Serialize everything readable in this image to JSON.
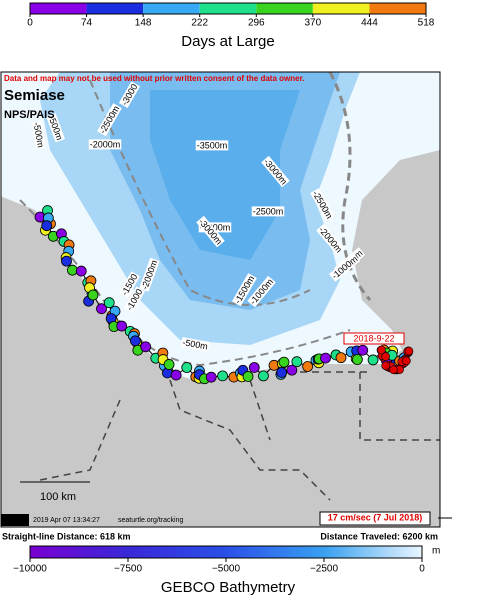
{
  "days_colorbar": {
    "title": "Days at Large",
    "ticks": [
      0,
      74,
      148,
      222,
      296,
      370,
      444,
      518
    ],
    "colors": [
      "#8a00e6",
      "#1a2ee0",
      "#38aaf5",
      "#1ee08a",
      "#38d420",
      "#f0f020",
      "#f07a10"
    ]
  },
  "map": {
    "warning": "Data and map may not be used without prior written consent of the data owner.",
    "turtle_name": "Semiase",
    "owner": "NPS/PAIS",
    "contour_labels": [
      "-3000",
      "-2500m",
      "-2000m",
      "-3500m",
      "-3000m",
      "-2500m",
      "-2000m",
      "-3000m",
      "-2500m",
      "-2000m",
      "-1500m",
      "-1000m",
      "-1500",
      "-1000",
      "-2000m",
      "-1500m",
      "-1000m",
      "-500m",
      "-500m",
      "-500m"
    ],
    "date_label": "2018-9-22",
    "scale_label": "100 km",
    "timestamp": "2019 Apr 07 13:34:27",
    "website": "seaturtle.org/tracking",
    "current_label": "17 cm/sec (7 Jul 2018)"
  },
  "stats": {
    "straight_line": "Straight-line Distance: 618 km",
    "traveled": "Distance Traveled: 6200 km"
  },
  "bathy_colorbar": {
    "title": "GEBCO Bathymetry",
    "unit": "m",
    "ticks": [
      {
        "value": -10000,
        "label": "−10000"
      },
      {
        "value": -7500,
        "label": "−7500"
      },
      {
        "value": -5000,
        "label": "−5000"
      },
      {
        "value": -2500,
        "label": "−2500"
      },
      0
    ],
    "range": [
      -10000,
      0
    ]
  }
}
